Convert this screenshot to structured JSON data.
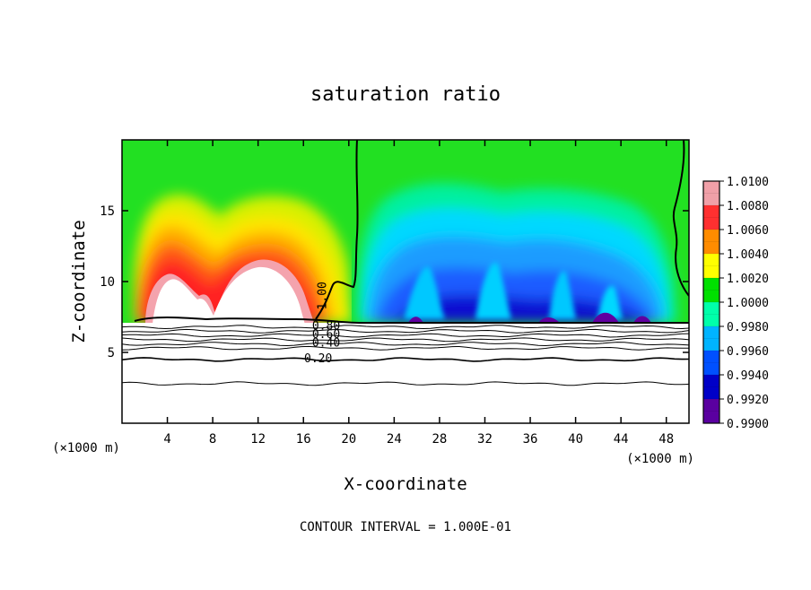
{
  "chart_data": {
    "type": "heatmap",
    "title": "saturation ratio",
    "xlabel": "X-coordinate",
    "ylabel": "Z-coordinate",
    "x_unit_label": "(×1000 m)",
    "z_unit_label": "(×1000 m)",
    "xlim": [
      0,
      50
    ],
    "ylim": [
      0,
      20
    ],
    "x_ticks": [
      4,
      8,
      12,
      16,
      20,
      24,
      28,
      32,
      36,
      40,
      44,
      48
    ],
    "y_ticks": [
      5,
      10,
      15
    ],
    "footer": "CONTOUR INTERVAL = 1.000E-01",
    "colorbar": {
      "min": 0.99,
      "max": 1.01,
      "tick_labels": [
        "1.0100",
        "1.0080",
        "1.0060",
        "1.0040",
        "1.0020",
        "1.0000",
        "0.9980",
        "0.9960",
        "0.9940",
        "0.9920",
        "0.9900"
      ],
      "colors": [
        "#f0a0a8",
        "#ff3030",
        "#ff8c00",
        "#ffff00",
        "#00e000",
        "#00ffaa",
        "#00b4ff",
        "#0050ff",
        "#0000c8",
        "#5a00a0"
      ]
    },
    "contour_labels": [
      {
        "text": "1.00",
        "x": 18.0,
        "z": 9.0
      },
      {
        "text": "0.80",
        "x": 18.0,
        "z": 6.6
      },
      {
        "text": "0.60",
        "x": 18.0,
        "z": 6.0
      },
      {
        "text": "0.40",
        "x": 18.0,
        "z": 5.4
      },
      {
        "text": "0.20",
        "x": 17.3,
        "z": 4.3
      }
    ],
    "cloud_base_z": 7.2,
    "lower_contour_levels_z": [
      6.8,
      6.5,
      6.2,
      5.9,
      5.6,
      5.3,
      4.5,
      2.8
    ]
  }
}
